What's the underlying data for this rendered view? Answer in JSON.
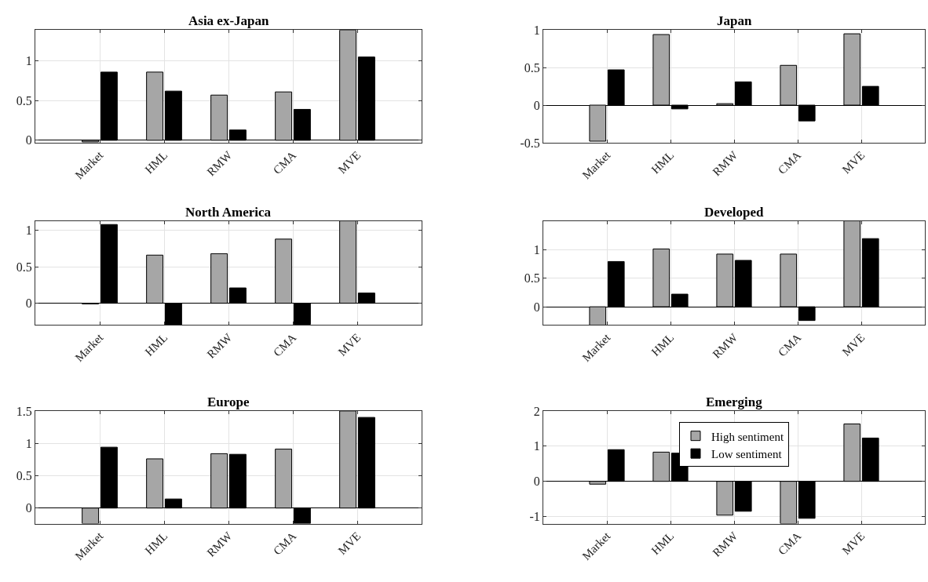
{
  "chart_data": [
    {
      "type": "bar",
      "title": "Asia ex-Japan",
      "categories": [
        "Market",
        "HML",
        "RMW",
        "CMA",
        "MVE"
      ],
      "ylim": [
        -0.03,
        1.39
      ],
      "yticks": [
        0,
        0.5,
        1
      ],
      "grid": true,
      "legend": false,
      "series": [
        {
          "color": "#a6a6a6",
          "values": [
            -0.02,
            0.86,
            0.57,
            0.61,
            1.39
          ]
        },
        {
          "color": "#000000",
          "values": [
            0.86,
            0.62,
            0.13,
            0.39,
            1.05
          ]
        }
      ]
    },
    {
      "type": "bar",
      "title": "Japan",
      "categories": [
        "Market",
        "HML",
        "RMW",
        "CMA",
        "MVE"
      ],
      "ylim": [
        -0.5,
        1
      ],
      "yticks": [
        -0.5,
        0,
        0.5,
        1
      ],
      "grid": true,
      "legend": false,
      "series": [
        {
          "color": "#a6a6a6",
          "values": [
            -0.48,
            0.94,
            0.02,
            0.53,
            0.95
          ]
        },
        {
          "color": "#000000",
          "values": [
            0.47,
            -0.05,
            0.31,
            -0.21,
            0.25
          ]
        }
      ]
    },
    {
      "type": "bar",
      "title": "North America",
      "categories": [
        "Market",
        "HML",
        "RMW",
        "CMA",
        "MVE"
      ],
      "ylim": [
        -0.3,
        1.13
      ],
      "yticks": [
        0,
        0.5,
        1
      ],
      "grid": true,
      "legend": false,
      "series": [
        {
          "color": "#a6a6a6",
          "values": [
            -0.01,
            0.66,
            0.68,
            0.88,
            1.13
          ]
        },
        {
          "color": "#000000",
          "values": [
            1.08,
            -0.3,
            0.21,
            -0.29,
            0.14
          ]
        }
      ]
    },
    {
      "type": "bar",
      "title": "Developed",
      "categories": [
        "Market",
        "HML",
        "RMW",
        "CMA",
        "MVE"
      ],
      "ylim": [
        -0.32,
        1.5
      ],
      "yticks": [
        0,
        0.5,
        1
      ],
      "grid": true,
      "legend": false,
      "series": [
        {
          "color": "#a6a6a6",
          "values": [
            -0.32,
            1.01,
            0.92,
            0.92,
            1.5
          ]
        },
        {
          "color": "#000000",
          "values": [
            0.79,
            0.22,
            0.81,
            -0.24,
            1.19
          ]
        }
      ]
    },
    {
      "type": "bar",
      "title": "Europe",
      "categories": [
        "Market",
        "HML",
        "RMW",
        "CMA",
        "MVE"
      ],
      "ylim": [
        -0.24,
        1.5
      ],
      "yticks": [
        0,
        0.5,
        1,
        1.5
      ],
      "grid": true,
      "legend": false,
      "series": [
        {
          "color": "#a6a6a6",
          "values": [
            -0.24,
            0.76,
            0.84,
            0.91,
            1.5
          ]
        },
        {
          "color": "#000000",
          "values": [
            0.94,
            0.14,
            0.83,
            -0.24,
            1.4
          ]
        }
      ]
    },
    {
      "type": "bar",
      "title": "Emerging",
      "categories": [
        "Market",
        "HML",
        "RMW",
        "CMA",
        "MVE"
      ],
      "ylim": [
        -1.2,
        2
      ],
      "yticks": [
        -1,
        0,
        1,
        2
      ],
      "grid": true,
      "legend": "top",
      "series": [
        {
          "name": "High sentiment",
          "color": "#a6a6a6",
          "values": [
            -0.08,
            0.83,
            -0.96,
            -1.2,
            1.63
          ]
        },
        {
          "name": "Low sentiment",
          "color": "#000000",
          "values": [
            0.9,
            0.8,
            -0.85,
            -1.05,
            1.23
          ]
        }
      ]
    }
  ]
}
